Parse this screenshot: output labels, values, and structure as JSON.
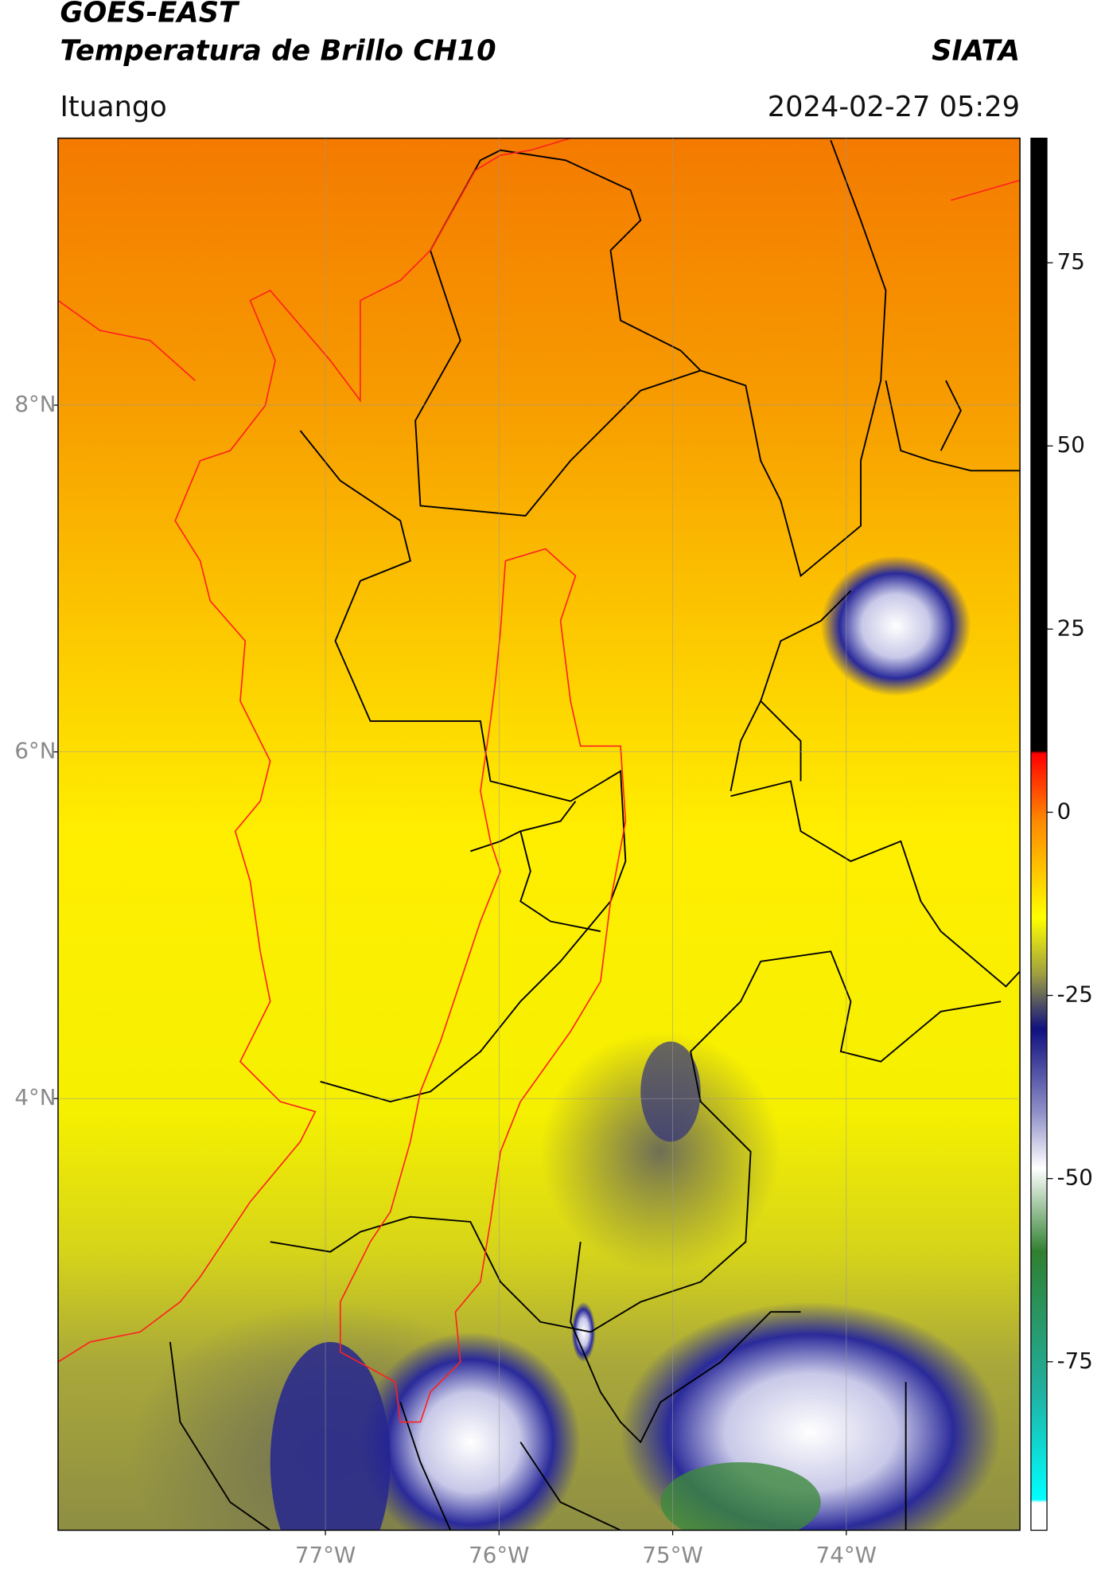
{
  "header": {
    "title": "GOES-EAST",
    "subtitle": "Temperatura de Brillo CH10",
    "source": "SIATA",
    "location": "Ituango",
    "datetime": "2024-02-27 05:29"
  },
  "map": {
    "lat_range": [
      1.51,
      9.54
    ],
    "lon_range": [
      -78.54,
      -73.0
    ],
    "grid": true,
    "lat_ticks": [
      {
        "value": 8,
        "label": "8°N"
      },
      {
        "value": 6,
        "label": "6°N"
      },
      {
        "value": 4,
        "label": "4°N"
      }
    ],
    "lon_ticks": [
      {
        "value": -77,
        "label": "77°W"
      },
      {
        "value": -76,
        "label": "76°W"
      },
      {
        "value": -75,
        "label": "75°W"
      },
      {
        "value": -74,
        "label": "74°W"
      }
    ]
  },
  "colorbar": {
    "range": [
      -98,
      92
    ],
    "ticks": [
      75,
      50,
      25,
      0,
      -25,
      -50,
      -75
    ]
  }
}
